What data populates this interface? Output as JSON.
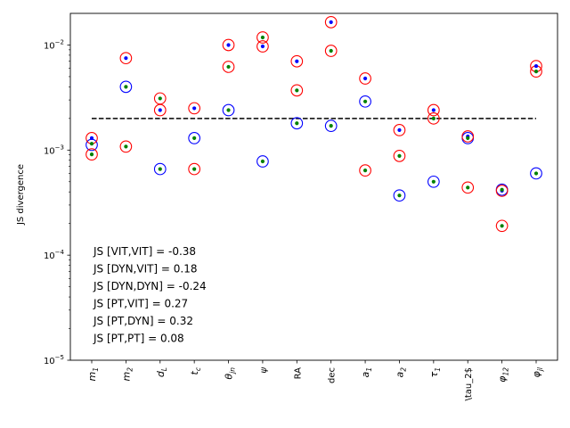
{
  "chart_data": {
    "type": "scatter",
    "title": "",
    "xlabel": "",
    "ylabel": "JS divergence",
    "yscale": "log",
    "ylim": [
      1e-05,
      0.02
    ],
    "grid": false,
    "categories": [
      "m_1",
      "m_2",
      "d_L",
      "t_c",
      "θ_jn",
      "ψ",
      "RA",
      "dec",
      "a_1",
      "a_2",
      "τ_1",
      "\\tau_2$",
      "φ_12",
      "φ_jl"
    ],
    "category_styles": [
      "math",
      "math",
      "math",
      "math",
      "math",
      "math",
      "plain",
      "plain",
      "math",
      "math",
      "math",
      "plain",
      "math",
      "math"
    ],
    "y_ticks": [
      {
        "value": 1e-05,
        "base": "10",
        "exp": "−5"
      },
      {
        "value": 0.0001,
        "base": "10",
        "exp": "−4"
      },
      {
        "value": 0.001,
        "base": "10",
        "exp": "−3"
      },
      {
        "value": 0.01,
        "base": "10",
        "exp": "−2"
      }
    ],
    "threshold": {
      "value": 0.002,
      "style": "dashed",
      "color": "#000000"
    },
    "series": [
      {
        "marker": "blue-circle",
        "color": "#0000ff",
        "values": [
          0.00112,
          0.004,
          0.00066,
          0.0013,
          0.0024,
          0.00078,
          0.0018,
          0.0017,
          0.0029,
          0.00037,
          0.0005,
          0.0013,
          0.00042,
          0.0006
        ]
      },
      {
        "marker": "red-circle",
        "color": "#ff0000",
        "values": [
          0.0013,
          0.0075,
          0.0024,
          0.0025,
          0.01,
          0.0097,
          0.007,
          0.0165,
          0.0048,
          0.00155,
          0.0024,
          0.00135,
          0.00041,
          0.0063
        ]
      },
      {
        "marker": "red-circle",
        "color": "#ff0000",
        "values": [
          0.00091,
          0.00108,
          0.0031,
          0.00066,
          0.0062,
          0.0118,
          0.0037,
          0.0088,
          0.00064,
          0.00088,
          0.002,
          0.00044,
          0.00019,
          0.0056
        ]
      },
      {
        "marker": "blue-dot",
        "color": "#0000ff",
        "values": [
          0.0013,
          0.0075,
          0.0024,
          0.0025,
          0.01,
          0.0097,
          0.007,
          0.0165,
          0.0048,
          0.00155,
          0.0024,
          0.00135,
          0.00041,
          0.0063
        ]
      },
      {
        "marker": "green-dot",
        "color": "#008000",
        "values": [
          0.00091,
          0.00108,
          0.00066,
          0.00066,
          0.0062,
          0.0118,
          0.0037,
          0.0088,
          0.00064,
          0.00088,
          0.002,
          0.00044,
          0.00019,
          0.0056
        ]
      },
      {
        "marker": "green-dot",
        "color": "#008000",
        "values": [
          0.00115,
          0.004,
          0.0031,
          0.0013,
          0.0024,
          0.00078,
          0.0018,
          0.0017,
          0.0029,
          0.00037,
          0.0005,
          0.0013,
          0.00042,
          0.0006
        ]
      }
    ],
    "annotations": [
      "JS [VIT,VIT] = -0.38",
      "JS [DYN,VIT] = 0.18",
      "JS [DYN,DYN] = -0.24",
      "JS [PT,VIT] = 0.27",
      "JS [PT,DYN] = 0.32",
      "JS [PT,PT] = 0.08"
    ]
  }
}
